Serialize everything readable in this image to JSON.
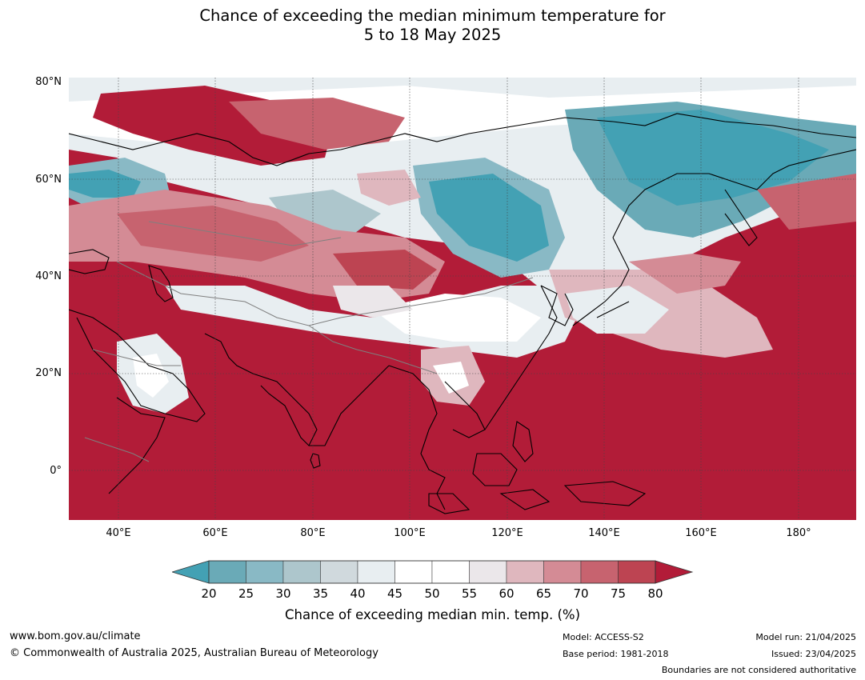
{
  "title": {
    "line1": "Chance of exceeding the median minimum temperature for",
    "line2": "5 to 18 May 2025"
  },
  "map": {
    "lat_labels": [
      "80°N",
      "60°N",
      "40°N",
      "20°N",
      "0°"
    ],
    "lon_labels": [
      "40°E",
      "60°E",
      "80°E",
      "100°E",
      "120°E",
      "140°E",
      "160°E",
      "180°"
    ],
    "colors": {
      "ocean_fill": "#b21c38",
      "land_outline": "#000000",
      "border": "#7f7f7f",
      "grid": "#555555"
    }
  },
  "colorbar": {
    "label": "Chance of exceeding median min. temp. (%)",
    "ticks": [
      "20",
      "25",
      "30",
      "35",
      "40",
      "45",
      "50",
      "55",
      "60",
      "65",
      "70",
      "75",
      "80"
    ],
    "colors": [
      "#43a1b4",
      "#6aaab7",
      "#89b9c5",
      "#adc6cc",
      "#d0d9dd",
      "#e8eef1",
      "#ffffff",
      "#ffffff",
      "#ebe7ea",
      "#dfb7be",
      "#d48b95",
      "#c7636f",
      "#bd4452",
      "#b21c38"
    ]
  },
  "footer": {
    "website": "www.bom.gov.au/climate",
    "copyright": "© Commonwealth of Australia 2025, Australian Bureau of Meteorology",
    "model": "Model: ACCESS-S2",
    "base_period": "Base period: 1981-2018",
    "model_run": "Model run: 21/04/2025",
    "issued": "Issued: 23/04/2025",
    "disclaimer": "Boundaries are not considered authoritative"
  }
}
